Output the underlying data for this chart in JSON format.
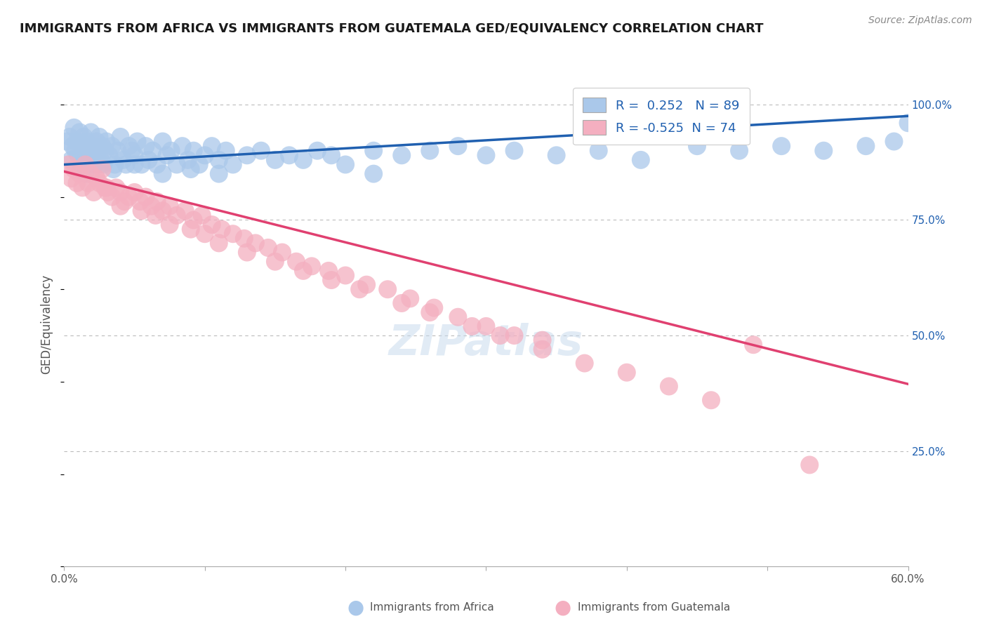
{
  "title": "IMMIGRANTS FROM AFRICA VS IMMIGRANTS FROM GUATEMALA GED/EQUIVALENCY CORRELATION CHART",
  "source": "Source: ZipAtlas.com",
  "ylabel": "GED/Equivalency",
  "xlim": [
    0.0,
    0.6
  ],
  "ylim": [
    0.0,
    1.05
  ],
  "africa_R": 0.252,
  "africa_N": 89,
  "guatemala_R": -0.525,
  "guatemala_N": 74,
  "africa_color": "#aac8ea",
  "guatemala_color": "#f4afc0",
  "africa_line_color": "#2060b0",
  "guatemala_line_color": "#e04070",
  "axis_label_color": "#2060b0",
  "background_color": "#ffffff",
  "watermark": "ZIPatlas",
  "africa_scatter_x": [
    0.002,
    0.004,
    0.005,
    0.006,
    0.007,
    0.008,
    0.009,
    0.01,
    0.011,
    0.012,
    0.013,
    0.014,
    0.015,
    0.016,
    0.017,
    0.018,
    0.019,
    0.02,
    0.021,
    0.022,
    0.023,
    0.024,
    0.025,
    0.026,
    0.027,
    0.028,
    0.029,
    0.03,
    0.032,
    0.034,
    0.036,
    0.038,
    0.04,
    0.042,
    0.044,
    0.046,
    0.048,
    0.05,
    0.052,
    0.055,
    0.058,
    0.06,
    0.063,
    0.066,
    0.07,
    0.073,
    0.076,
    0.08,
    0.084,
    0.088,
    0.092,
    0.096,
    0.1,
    0.105,
    0.11,
    0.115,
    0.12,
    0.13,
    0.14,
    0.15,
    0.16,
    0.17,
    0.18,
    0.19,
    0.2,
    0.22,
    0.24,
    0.26,
    0.28,
    0.3,
    0.32,
    0.35,
    0.38,
    0.41,
    0.45,
    0.48,
    0.51,
    0.54,
    0.57,
    0.59,
    0.6,
    0.22,
    0.11,
    0.09,
    0.07,
    0.05,
    0.035,
    0.025,
    0.015
  ],
  "africa_scatter_y": [
    0.92,
    0.93,
    0.88,
    0.91,
    0.95,
    0.9,
    0.92,
    0.89,
    0.94,
    0.87,
    0.91,
    0.93,
    0.88,
    0.92,
    0.9,
    0.87,
    0.94,
    0.91,
    0.89,
    0.87,
    0.92,
    0.9,
    0.93,
    0.88,
    0.91,
    0.87,
    0.9,
    0.92,
    0.89,
    0.91,
    0.87,
    0.9,
    0.93,
    0.88,
    0.87,
    0.91,
    0.9,
    0.89,
    0.92,
    0.87,
    0.91,
    0.88,
    0.9,
    0.87,
    0.92,
    0.89,
    0.9,
    0.87,
    0.91,
    0.88,
    0.9,
    0.87,
    0.89,
    0.91,
    0.88,
    0.9,
    0.87,
    0.89,
    0.9,
    0.88,
    0.89,
    0.88,
    0.9,
    0.89,
    0.87,
    0.9,
    0.89,
    0.9,
    0.91,
    0.89,
    0.9,
    0.89,
    0.9,
    0.88,
    0.91,
    0.9,
    0.91,
    0.9,
    0.91,
    0.92,
    0.96,
    0.85,
    0.85,
    0.86,
    0.85,
    0.87,
    0.86,
    0.87,
    0.85
  ],
  "guatemala_scatter_x": [
    0.003,
    0.005,
    0.007,
    0.009,
    0.011,
    0.013,
    0.015,
    0.017,
    0.019,
    0.021,
    0.023,
    0.025,
    0.027,
    0.029,
    0.031,
    0.034,
    0.037,
    0.04,
    0.043,
    0.046,
    0.05,
    0.054,
    0.058,
    0.062,
    0.066,
    0.07,
    0.075,
    0.08,
    0.086,
    0.092,
    0.098,
    0.105,
    0.112,
    0.12,
    0.128,
    0.136,
    0.145,
    0.155,
    0.165,
    0.176,
    0.188,
    0.2,
    0.215,
    0.23,
    0.246,
    0.263,
    0.28,
    0.3,
    0.32,
    0.34,
    0.03,
    0.04,
    0.055,
    0.065,
    0.075,
    0.09,
    0.1,
    0.11,
    0.13,
    0.15,
    0.17,
    0.19,
    0.21,
    0.24,
    0.26,
    0.29,
    0.31,
    0.34,
    0.37,
    0.4,
    0.43,
    0.46,
    0.49,
    0.53
  ],
  "guatemala_scatter_y": [
    0.87,
    0.84,
    0.86,
    0.83,
    0.85,
    0.82,
    0.87,
    0.83,
    0.85,
    0.81,
    0.84,
    0.83,
    0.86,
    0.82,
    0.81,
    0.8,
    0.82,
    0.81,
    0.79,
    0.8,
    0.81,
    0.79,
    0.8,
    0.78,
    0.79,
    0.77,
    0.78,
    0.76,
    0.77,
    0.75,
    0.76,
    0.74,
    0.73,
    0.72,
    0.71,
    0.7,
    0.69,
    0.68,
    0.66,
    0.65,
    0.64,
    0.63,
    0.61,
    0.6,
    0.58,
    0.56,
    0.54,
    0.52,
    0.5,
    0.49,
    0.82,
    0.78,
    0.77,
    0.76,
    0.74,
    0.73,
    0.72,
    0.7,
    0.68,
    0.66,
    0.64,
    0.62,
    0.6,
    0.57,
    0.55,
    0.52,
    0.5,
    0.47,
    0.44,
    0.42,
    0.39,
    0.36,
    0.48,
    0.22
  ],
  "africa_trend_x": [
    0.0,
    0.6
  ],
  "africa_trend_y": [
    0.87,
    0.975
  ],
  "guatemala_trend_x": [
    0.0,
    0.6
  ],
  "guatemala_trend_y": [
    0.855,
    0.395
  ]
}
